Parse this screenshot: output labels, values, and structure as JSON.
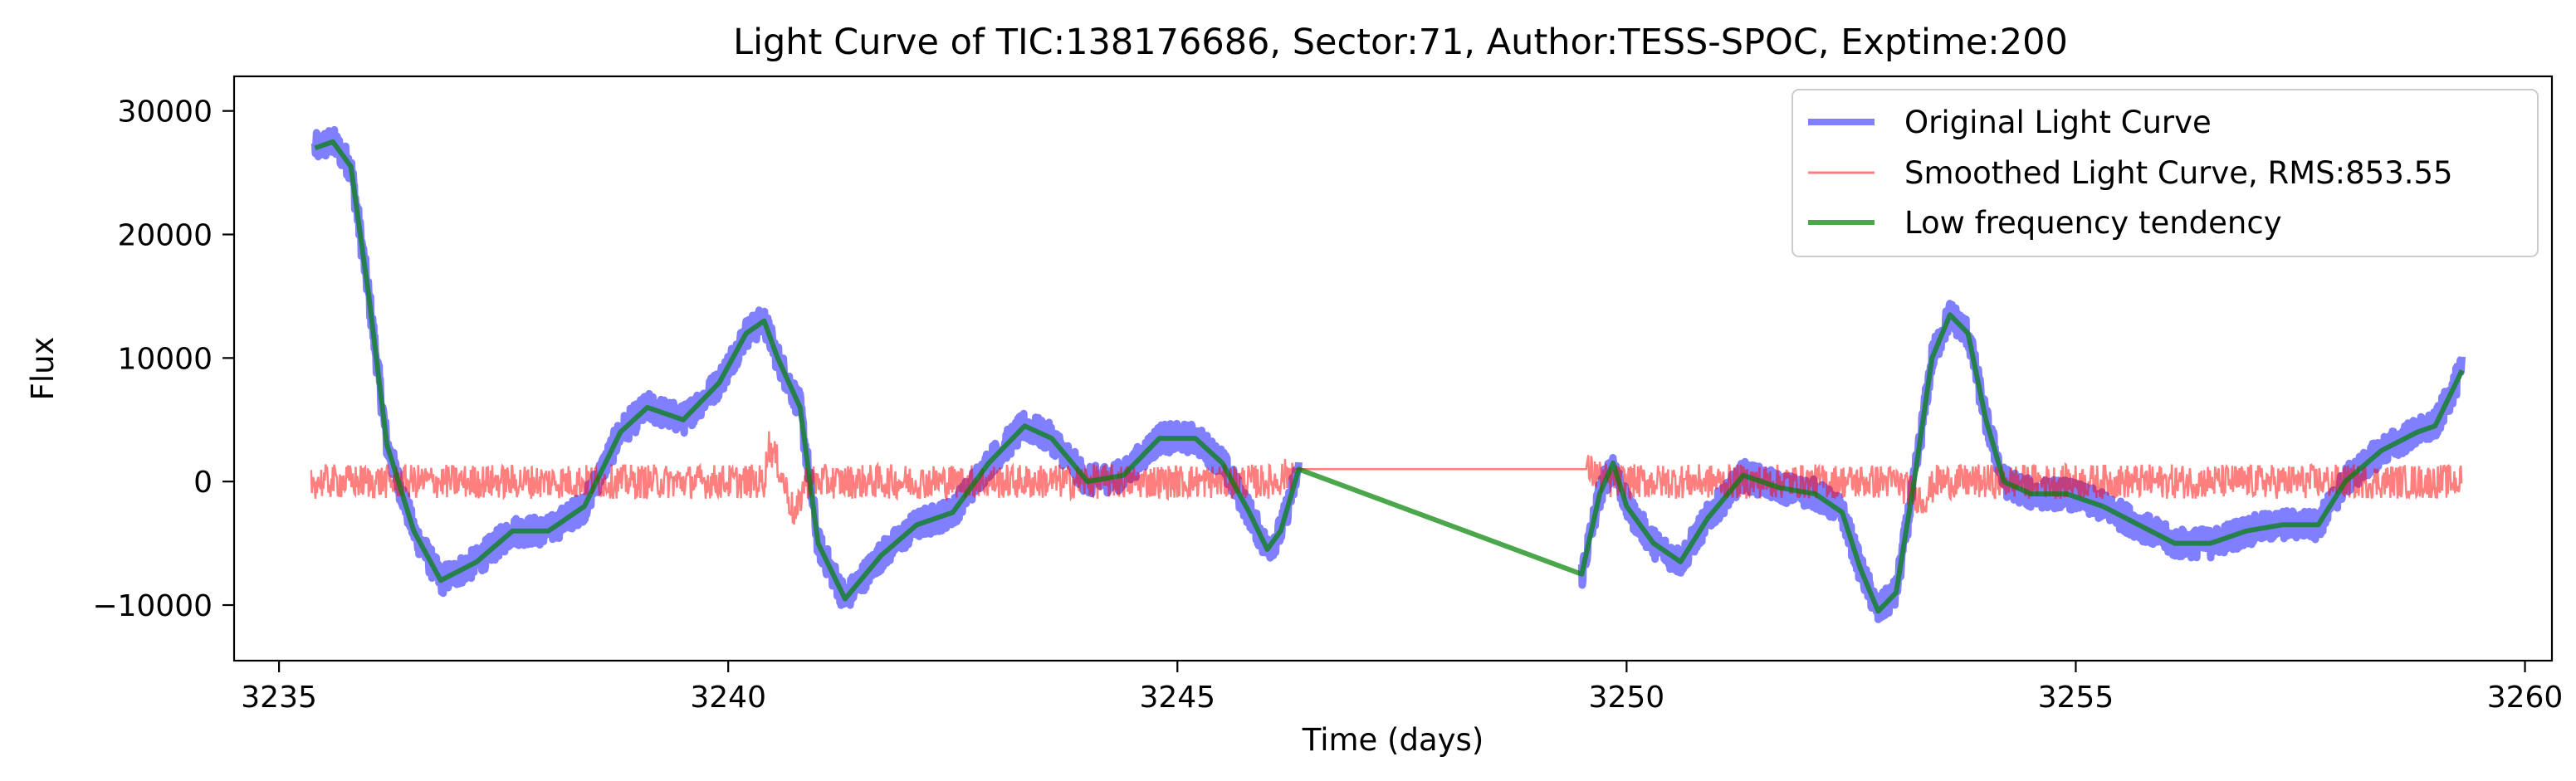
{
  "chart_data": {
    "type": "line",
    "title": "Light Curve of TIC:138176686, Sector:71, Author:TESS-SPOC, Exptime:200",
    "xlabel": "Time (days)",
    "ylabel": "Flux",
    "xlim": [
      3234.5,
      3260.3
    ],
    "ylim": [
      -14500,
      32800
    ],
    "xticks": [
      3235,
      3240,
      3245,
      3250,
      3255,
      3260
    ],
    "yticks": [
      -10000,
      0,
      10000,
      20000,
      30000
    ],
    "xtick_labels": [
      "3235",
      "3240",
      "3245",
      "3250",
      "3255",
      "3260"
    ],
    "ytick_labels": [
      "−10000",
      "0",
      "10000",
      "20000",
      "30000"
    ],
    "grid": false,
    "legend_position": "top-right",
    "series": [
      {
        "name": "Original Light Curve",
        "color": "#0000ff",
        "style": "thick band, alpha 0.5",
        "x": [
          3235.4,
          3235.6,
          3235.8,
          3236.0,
          3236.2,
          3236.5,
          3236.8,
          3237.2,
          3237.6,
          3238.0,
          3238.4,
          3238.8,
          3239.1,
          3239.5,
          3239.9,
          3240.2,
          3240.4,
          3240.55,
          3240.8,
          3241.0,
          3241.3,
          3241.7,
          3242.1,
          3242.5,
          3242.9,
          3243.3,
          3243.6,
          3244.0,
          3244.4,
          3244.8,
          3245.2,
          3245.5,
          3245.8,
          3246.0,
          3246.15,
          3246.35,
          3249.5,
          3249.7,
          3249.85,
          3250.0,
          3250.3,
          3250.6,
          3250.9,
          3251.3,
          3251.7,
          3252.1,
          3252.4,
          3252.6,
          3252.8,
          3253.0,
          3253.2,
          3253.4,
          3253.6,
          3253.8,
          3254.0,
          3254.2,
          3254.5,
          3254.9,
          3255.3,
          3255.7,
          3256.1,
          3256.5,
          3256.9,
          3257.3,
          3257.7,
          3258.0,
          3258.4,
          3258.8,
          3259.0,
          3259.3
        ],
        "values": [
          27000,
          27500,
          25500,
          15000,
          3000,
          -4000,
          -8000,
          -6500,
          -4000,
          -4000,
          -2000,
          4000,
          6000,
          5000,
          8000,
          12000,
          13000,
          10000,
          6000,
          -5000,
          -9500,
          -6000,
          -3500,
          -2500,
          1500,
          4500,
          3500,
          0,
          500,
          3500,
          3500,
          1500,
          -2500,
          -5500,
          -4000,
          1000,
          -7500,
          -1000,
          1500,
          -2000,
          -5000,
          -6500,
          -3000,
          500,
          -500,
          -1000,
          -2500,
          -7000,
          -10500,
          -9000,
          0,
          10000,
          13500,
          12000,
          5000,
          0,
          -1000,
          -1000,
          -2000,
          -3500,
          -5000,
          -5000,
          -4000,
          -3500,
          -3500,
          0,
          2500,
          4000,
          4500,
          9000
        ]
      },
      {
        "name": "Smoothed Light Curve, RMS:853.55",
        "color": "#ff0000",
        "style": "thin noisy line, alpha 0.5",
        "x": [
          3235.35,
          3237.0,
          3238.5,
          3240.4,
          3240.45,
          3240.55,
          3240.75,
          3240.85,
          3241.5,
          3243.0,
          3244.5,
          3246.1,
          3246.3,
          3249.55,
          3249.8,
          3251.0,
          3252.0,
          3253.0,
          3253.3,
          3253.45,
          3253.6,
          3254.5,
          3256.0,
          3257.5,
          3259.3
        ],
        "values": [
          0,
          0,
          0,
          0,
          3000,
          1500,
          -3000,
          0,
          0,
          0,
          0,
          0,
          1000,
          1000,
          0,
          0,
          0,
          0,
          -1500,
          0,
          0,
          0,
          0,
          0,
          0
        ],
        "noise_amplitude": 1400
      },
      {
        "name": "Low frequency tendency",
        "color": "#008000",
        "style": "thick line, alpha 0.7",
        "x": [
          3235.4,
          3235.6,
          3235.8,
          3236.0,
          3236.2,
          3236.5,
          3236.8,
          3237.2,
          3237.6,
          3238.0,
          3238.4,
          3238.8,
          3239.1,
          3239.5,
          3239.9,
          3240.2,
          3240.4,
          3240.55,
          3240.8,
          3241.0,
          3241.3,
          3241.7,
          3242.1,
          3242.5,
          3242.9,
          3243.3,
          3243.6,
          3244.0,
          3244.4,
          3244.8,
          3245.2,
          3245.5,
          3245.8,
          3246.0,
          3246.15,
          3246.35,
          3249.5,
          3249.7,
          3249.85,
          3250.0,
          3250.3,
          3250.6,
          3250.9,
          3251.3,
          3251.7,
          3252.1,
          3252.4,
          3252.6,
          3252.8,
          3253.0,
          3253.2,
          3253.4,
          3253.6,
          3253.8,
          3254.0,
          3254.2,
          3254.5,
          3254.9,
          3255.3,
          3255.7,
          3256.1,
          3256.5,
          3256.9,
          3257.3,
          3257.7,
          3258.0,
          3258.4,
          3258.8,
          3259.0,
          3259.3
        ],
        "values": [
          27000,
          27500,
          25500,
          15000,
          3000,
          -4000,
          -8000,
          -6500,
          -4000,
          -4000,
          -2000,
          4000,
          6000,
          5000,
          8000,
          12000,
          13000,
          10000,
          6000,
          -5000,
          -9500,
          -6000,
          -3500,
          -2500,
          1500,
          4500,
          3500,
          0,
          500,
          3500,
          3500,
          1500,
          -2500,
          -5500,
          -4000,
          1000,
          -7500,
          -1000,
          1500,
          -2000,
          -5000,
          -6500,
          -3000,
          500,
          -500,
          -1000,
          -2500,
          -7000,
          -10500,
          -9000,
          0,
          10000,
          13500,
          12000,
          5000,
          0,
          -1000,
          -1000,
          -2000,
          -3500,
          -5000,
          -5000,
          -4000,
          -3500,
          -3500,
          0,
          2500,
          4000,
          4500,
          9000
        ]
      }
    ]
  }
}
